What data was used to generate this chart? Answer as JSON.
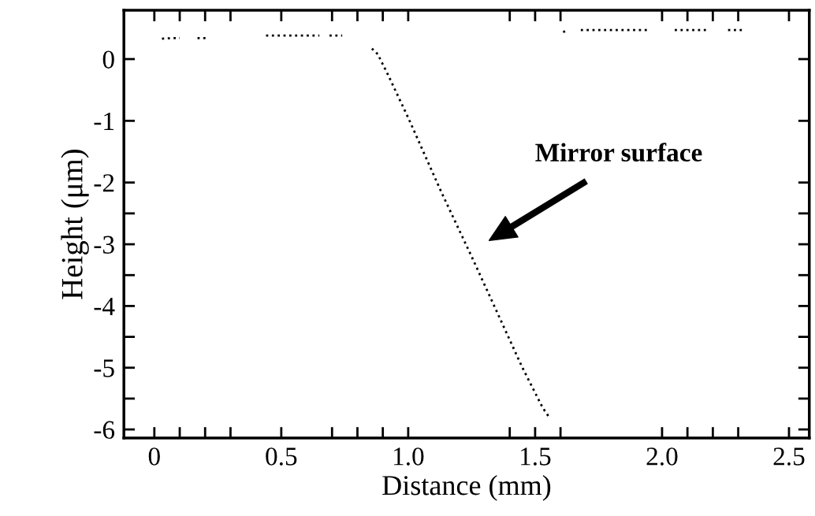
{
  "chart_data": {
    "type": "line",
    "xlabel": "Distance (mm)",
    "ylabel": "Height (μm)",
    "x": [
      0.03,
      0.07,
      0.1,
      0.13,
      0.17,
      0.21,
      0.3,
      0.44,
      0.6,
      0.65,
      0.67,
      0.69,
      0.74,
      0.8,
      0.857,
      0.88,
      0.92,
      1.0,
      1.13,
      1.25,
      1.35,
      1.45,
      1.53,
      1.555,
      1.58,
      1.61,
      1.63,
      1.65,
      1.68,
      1.86,
      1.95,
      2.0,
      2.05,
      2.18,
      2.22,
      2.26,
      2.32
    ],
    "series": [
      {
        "color": "#000000",
        "values": [
          0.33,
          0.34,
          0.34,
          null,
          0.34,
          0.34,
          null,
          0.38,
          0.38,
          0.38,
          null,
          0.38,
          0.38,
          null,
          0.17,
          0.08,
          -0.25,
          -0.95,
          -2.15,
          -3.2,
          -4.1,
          -5.0,
          -5.65,
          -5.8,
          null,
          0.44,
          0.46,
          null,
          0.47,
          0.47,
          0.47,
          null,
          0.47,
          0.47,
          null,
          0.47,
          0.47
        ]
      }
    ],
    "line_style": "dotted",
    "marker": "none",
    "grid": false,
    "legend": false,
    "xlim": [
      -0.12,
      2.58
    ],
    "ylim": [
      -6.14,
      0.79
    ],
    "xticks": [
      0,
      {
        "value": 0.1,
        "label": null
      },
      {
        "value": 0.2,
        "label": null
      },
      {
        "value": 0.3,
        "label": null
      },
      0.5,
      {
        "value": 0.7,
        "label": null
      },
      {
        "value": 0.8,
        "label": null
      },
      {
        "value": 0.9,
        "label": null
      },
      {
        "value": 1,
        "label": "1.0"
      },
      {
        "value": 1.4,
        "label": null
      },
      1.5,
      {
        "value": 1.6,
        "label": null
      },
      {
        "value": 2,
        "label": "2.0"
      },
      {
        "value": 2.1,
        "label": null
      },
      {
        "value": 2.2,
        "label": null
      },
      {
        "value": 2.3,
        "label": null
      },
      2.5
    ],
    "yticks": [
      -6,
      {
        "value": -5.5,
        "label": null
      },
      -5,
      {
        "value": -4.5,
        "label": null
      },
      -4,
      {
        "value": -3.5,
        "label": null
      },
      -3,
      {
        "value": -2.5,
        "label": null
      },
      -2,
      -1,
      0
    ],
    "annotations": [
      "Mirror surface"
    ]
  }
}
